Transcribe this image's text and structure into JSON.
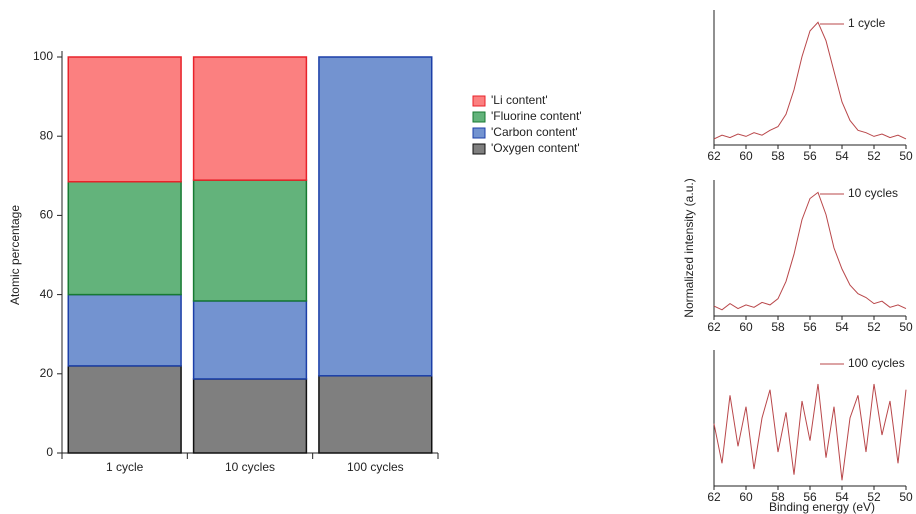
{
  "chart_data": [
    {
      "type": "bar",
      "stacked": true,
      "ylabel": "Atomic percentage",
      "categories": [
        "1 cycle",
        "10 cycles",
        "100 cycles"
      ],
      "series": [
        {
          "name": "'Li content'",
          "color": "#fb8080",
          "edgecolor": "#e8222a",
          "values": [
            31.5,
            31.1,
            0
          ]
        },
        {
          "name": "'Fluorine content'",
          "color": "#63b37b",
          "edgecolor": "#177a32",
          "values": [
            28.5,
            30.5,
            0
          ]
        },
        {
          "name": "'Carbon content'",
          "color": "#7393d0",
          "edgecolor": "#1c3fa8",
          "values": [
            18,
            19.7,
            80.5
          ]
        },
        {
          "name": "'Oxygen content'",
          "color": "#7f7f7f",
          "edgecolor": "#111111",
          "values": [
            22,
            18.7,
            19.5
          ]
        }
      ],
      "ylim": [
        0,
        100
      ],
      "yticks": [
        0,
        20,
        40,
        60,
        80,
        100
      ]
    },
    {
      "type": "line",
      "x": [
        62,
        61.5,
        61,
        60.5,
        60,
        59.5,
        59,
        58.5,
        58,
        57.5,
        57,
        56.5,
        56,
        55.5,
        55,
        54.5,
        54,
        53.5,
        53,
        52.5,
        52,
        51.5,
        51,
        50.5,
        50
      ],
      "series": [
        {
          "name": "1 cycle",
          "color": "#b9474a",
          "values": [
            0.05,
            0.08,
            0.06,
            0.09,
            0.07,
            0.1,
            0.08,
            0.12,
            0.15,
            0.25,
            0.45,
            0.72,
            0.93,
            1.0,
            0.85,
            0.6,
            0.35,
            0.2,
            0.12,
            0.1,
            0.07,
            0.09,
            0.06,
            0.08,
            0.05
          ]
        }
      ],
      "xlim": [
        62,
        50
      ],
      "xticks": [
        62,
        60,
        58,
        56,
        54,
        52,
        50
      ],
      "ylim": [
        0,
        1.1
      ]
    },
    {
      "type": "line",
      "ylabel": "Normalized intensity (a.u.)",
      "x": [
        62,
        61.5,
        61,
        60.5,
        60,
        59.5,
        59,
        58.5,
        58,
        57.5,
        57,
        56.5,
        56,
        55.5,
        55,
        54.5,
        54,
        53.5,
        53,
        52.5,
        52,
        51.5,
        51,
        50.5,
        50
      ],
      "series": [
        {
          "name": "10 cycles",
          "color": "#b9474a",
          "values": [
            0.08,
            0.05,
            0.1,
            0.06,
            0.09,
            0.07,
            0.11,
            0.09,
            0.14,
            0.28,
            0.5,
            0.78,
            0.95,
            1.0,
            0.82,
            0.55,
            0.38,
            0.25,
            0.18,
            0.15,
            0.1,
            0.12,
            0.07,
            0.09,
            0.06
          ]
        }
      ],
      "xlim": [
        62,
        50
      ],
      "xticks": [
        62,
        60,
        58,
        56,
        54,
        52,
        50
      ],
      "ylim": [
        0,
        1.1
      ]
    },
    {
      "type": "line",
      "xlabel": "Binding energy (eV)",
      "x": [
        62,
        61.5,
        61,
        60.5,
        60,
        59.5,
        59,
        58.5,
        58,
        57.5,
        57,
        56.5,
        56,
        55.5,
        55,
        54.5,
        54,
        53.5,
        53,
        52.5,
        52,
        51.5,
        51,
        50.5,
        50
      ],
      "series": [
        {
          "name": "100 cycles",
          "color": "#b9474a",
          "values": [
            0.55,
            0.2,
            0.8,
            0.35,
            0.7,
            0.15,
            0.6,
            0.85,
            0.3,
            0.65,
            0.1,
            0.75,
            0.4,
            0.9,
            0.25,
            0.7,
            0.05,
            0.6,
            0.8,
            0.3,
            0.9,
            0.45,
            0.75,
            0.2,
            0.85
          ]
        }
      ],
      "xlim": [
        62,
        50
      ],
      "xticks": [
        62,
        60,
        58,
        56,
        54,
        52,
        50
      ],
      "ylim": [
        0,
        1.2
      ]
    }
  ]
}
